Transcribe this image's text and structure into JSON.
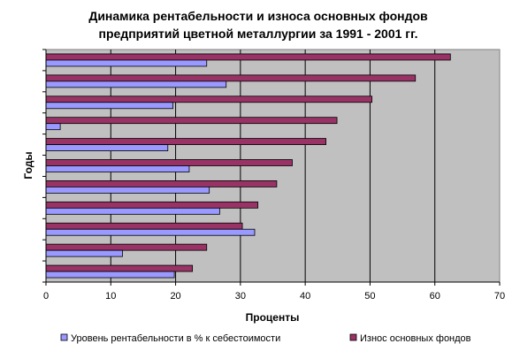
{
  "chart_data": {
    "type": "bar",
    "orientation": "horizontal",
    "title": [
      "Динамика рентабельности и износа основных фондов",
      "предприятий цветной металлургии за 1991 - 2001 гг."
    ],
    "xlabel": "Проценты",
    "ylabel": "Годы",
    "xlim": [
      0,
      70
    ],
    "xticks": [
      0,
      10,
      20,
      30,
      40,
      50,
      60,
      70
    ],
    "grid": "vertical",
    "plot_background": "#c0c0c0",
    "legend_position": "bottom",
    "categories_count": 11,
    "series": [
      {
        "name": "Уровень рентабельности в % к себестоимости",
        "color": "#9999ff",
        "values": [
          19.8,
          11.8,
          32.2,
          26.8,
          25.2,
          22.1,
          18.8,
          2.2,
          19.6,
          27.8,
          24.8
        ]
      },
      {
        "name": "Износ основных фондов",
        "color": "#993366",
        "values": [
          22.6,
          24.8,
          30.3,
          32.7,
          35.6,
          38.0,
          43.2,
          44.9,
          50.3,
          57.0,
          62.4
        ]
      }
    ]
  }
}
